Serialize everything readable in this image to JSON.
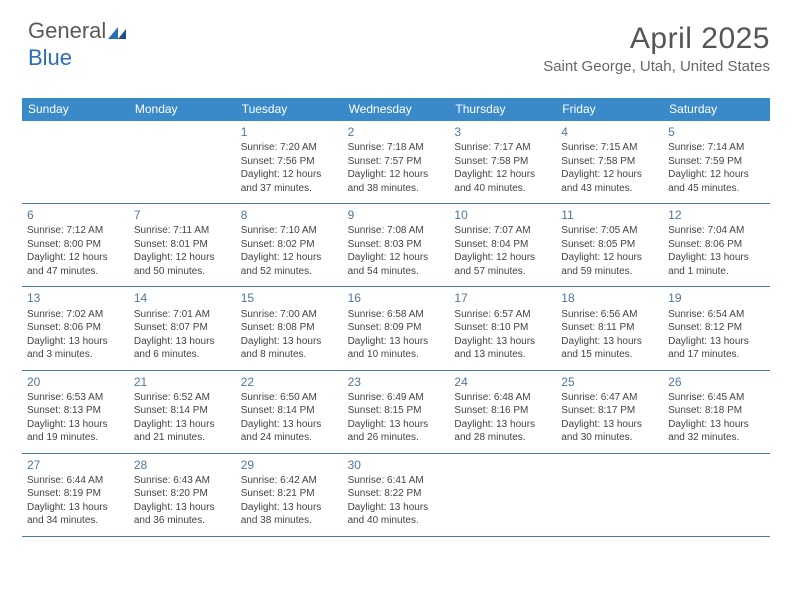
{
  "logo": {
    "part1": "General",
    "part2": "Blue"
  },
  "title": "April 2025",
  "location": "Saint George, Utah, United States",
  "colors": {
    "header_bg": "#3a8ac9",
    "header_text": "#ffffff",
    "row_border": "#4a7aa8",
    "daynum": "#5076a0",
    "body_text": "#444444",
    "logo_gray": "#5a5a5a",
    "logo_blue": "#2a6db5"
  },
  "daysOfWeek": [
    "Sunday",
    "Monday",
    "Tuesday",
    "Wednesday",
    "Thursday",
    "Friday",
    "Saturday"
  ],
  "startOffset": 2,
  "days": [
    {
      "n": 1,
      "sr": "7:20 AM",
      "ss": "7:56 PM",
      "dl": "12 hours and 37 minutes."
    },
    {
      "n": 2,
      "sr": "7:18 AM",
      "ss": "7:57 PM",
      "dl": "12 hours and 38 minutes."
    },
    {
      "n": 3,
      "sr": "7:17 AM",
      "ss": "7:58 PM",
      "dl": "12 hours and 40 minutes."
    },
    {
      "n": 4,
      "sr": "7:15 AM",
      "ss": "7:58 PM",
      "dl": "12 hours and 43 minutes."
    },
    {
      "n": 5,
      "sr": "7:14 AM",
      "ss": "7:59 PM",
      "dl": "12 hours and 45 minutes."
    },
    {
      "n": 6,
      "sr": "7:12 AM",
      "ss": "8:00 PM",
      "dl": "12 hours and 47 minutes."
    },
    {
      "n": 7,
      "sr": "7:11 AM",
      "ss": "8:01 PM",
      "dl": "12 hours and 50 minutes."
    },
    {
      "n": 8,
      "sr": "7:10 AM",
      "ss": "8:02 PM",
      "dl": "12 hours and 52 minutes."
    },
    {
      "n": 9,
      "sr": "7:08 AM",
      "ss": "8:03 PM",
      "dl": "12 hours and 54 minutes."
    },
    {
      "n": 10,
      "sr": "7:07 AM",
      "ss": "8:04 PM",
      "dl": "12 hours and 57 minutes."
    },
    {
      "n": 11,
      "sr": "7:05 AM",
      "ss": "8:05 PM",
      "dl": "12 hours and 59 minutes."
    },
    {
      "n": 12,
      "sr": "7:04 AM",
      "ss": "8:06 PM",
      "dl": "13 hours and 1 minute."
    },
    {
      "n": 13,
      "sr": "7:02 AM",
      "ss": "8:06 PM",
      "dl": "13 hours and 3 minutes."
    },
    {
      "n": 14,
      "sr": "7:01 AM",
      "ss": "8:07 PM",
      "dl": "13 hours and 6 minutes."
    },
    {
      "n": 15,
      "sr": "7:00 AM",
      "ss": "8:08 PM",
      "dl": "13 hours and 8 minutes."
    },
    {
      "n": 16,
      "sr": "6:58 AM",
      "ss": "8:09 PM",
      "dl": "13 hours and 10 minutes."
    },
    {
      "n": 17,
      "sr": "6:57 AM",
      "ss": "8:10 PM",
      "dl": "13 hours and 13 minutes."
    },
    {
      "n": 18,
      "sr": "6:56 AM",
      "ss": "8:11 PM",
      "dl": "13 hours and 15 minutes."
    },
    {
      "n": 19,
      "sr": "6:54 AM",
      "ss": "8:12 PM",
      "dl": "13 hours and 17 minutes."
    },
    {
      "n": 20,
      "sr": "6:53 AM",
      "ss": "8:13 PM",
      "dl": "13 hours and 19 minutes."
    },
    {
      "n": 21,
      "sr": "6:52 AM",
      "ss": "8:14 PM",
      "dl": "13 hours and 21 minutes."
    },
    {
      "n": 22,
      "sr": "6:50 AM",
      "ss": "8:14 PM",
      "dl": "13 hours and 24 minutes."
    },
    {
      "n": 23,
      "sr": "6:49 AM",
      "ss": "8:15 PM",
      "dl": "13 hours and 26 minutes."
    },
    {
      "n": 24,
      "sr": "6:48 AM",
      "ss": "8:16 PM",
      "dl": "13 hours and 28 minutes."
    },
    {
      "n": 25,
      "sr": "6:47 AM",
      "ss": "8:17 PM",
      "dl": "13 hours and 30 minutes."
    },
    {
      "n": 26,
      "sr": "6:45 AM",
      "ss": "8:18 PM",
      "dl": "13 hours and 32 minutes."
    },
    {
      "n": 27,
      "sr": "6:44 AM",
      "ss": "8:19 PM",
      "dl": "13 hours and 34 minutes."
    },
    {
      "n": 28,
      "sr": "6:43 AM",
      "ss": "8:20 PM",
      "dl": "13 hours and 36 minutes."
    },
    {
      "n": 29,
      "sr": "6:42 AM",
      "ss": "8:21 PM",
      "dl": "13 hours and 38 minutes."
    },
    {
      "n": 30,
      "sr": "6:41 AM",
      "ss": "8:22 PM",
      "dl": "13 hours and 40 minutes."
    }
  ],
  "labels": {
    "sunrise": "Sunrise:",
    "sunset": "Sunset:",
    "daylight": "Daylight:"
  }
}
